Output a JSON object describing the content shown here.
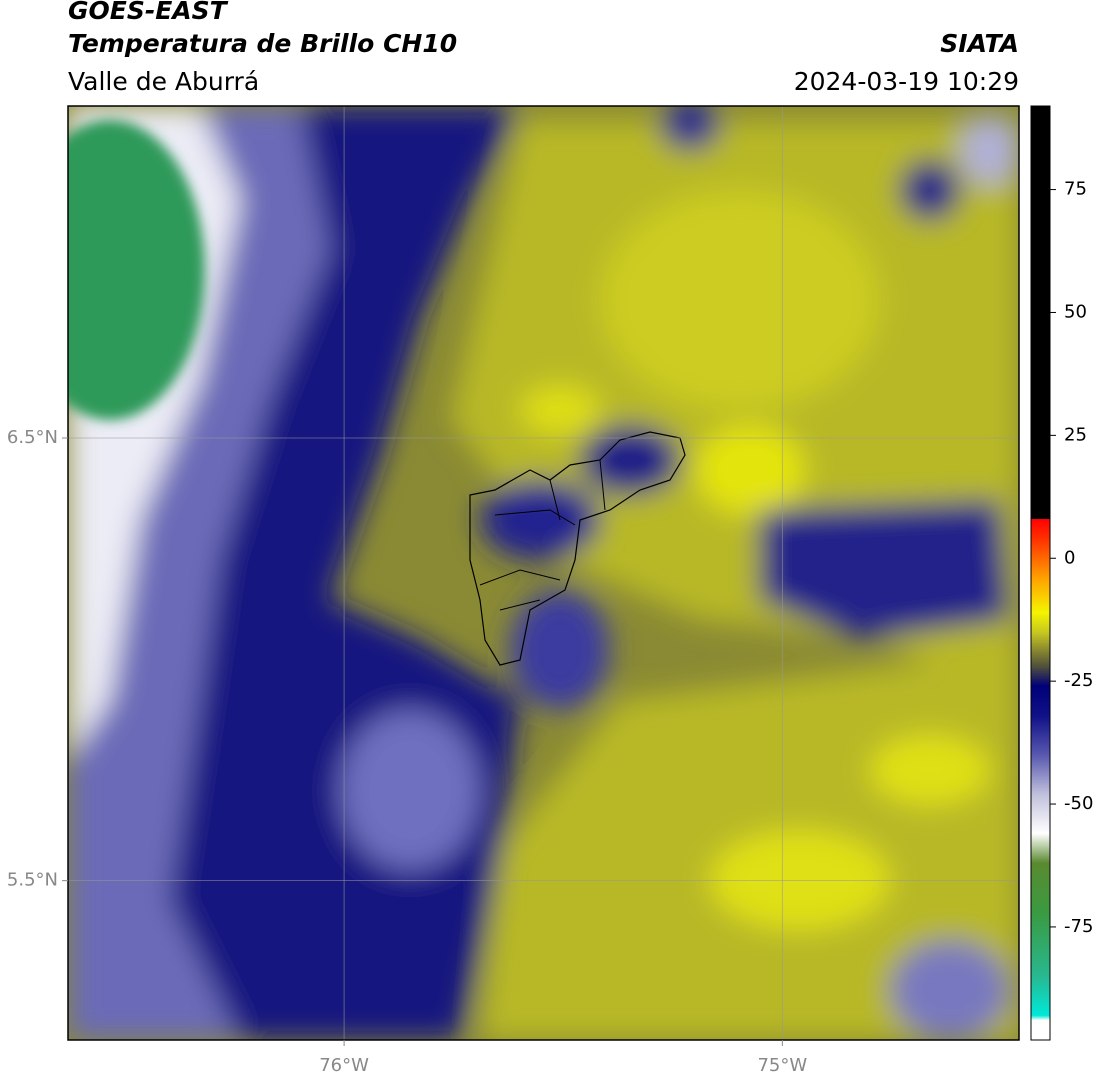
{
  "header": {
    "title": "GOES-EAST",
    "subtitle": "Temperatura de Brillo CH10",
    "region": "Valle de Aburrá",
    "source": "SIATA",
    "datetime": "2024-03-19 10:29"
  },
  "map": {
    "xlim": [
      -76.63,
      -74.46
    ],
    "ylim": [
      5.14,
      7.25
    ],
    "xticks": [
      {
        "value": -76,
        "label": "76°W"
      },
      {
        "value": -75,
        "label": "75°W"
      }
    ],
    "yticks": [
      {
        "value": 6.5,
        "label": "6.5°N"
      },
      {
        "value": 5.5,
        "label": "5.5°N"
      }
    ],
    "grid": true
  },
  "colorbar": {
    "lim": [
      -98,
      92
    ],
    "ticks": [
      75,
      50,
      25,
      0,
      -25,
      -50,
      -75
    ],
    "stops": [
      {
        "value": -98,
        "color": "#ffffff"
      },
      {
        "value": -94,
        "color": "#ffffff"
      },
      {
        "value": -93,
        "color": "#00e8d8"
      },
      {
        "value": -85,
        "color": "#28b890"
      },
      {
        "value": -72,
        "color": "#3a9a40"
      },
      {
        "value": -62,
        "color": "#5a8a30"
      },
      {
        "value": -56,
        "color": "#ffffff"
      },
      {
        "value": -48,
        "color": "#c0c0dc"
      },
      {
        "value": -40,
        "color": "#5858b0"
      },
      {
        "value": -32,
        "color": "#101088"
      },
      {
        "value": -26,
        "color": "#000078"
      },
      {
        "value": -22,
        "color": "#50503c"
      },
      {
        "value": -15,
        "color": "#c8c820"
      },
      {
        "value": -11,
        "color": "#f4f400"
      },
      {
        "value": -4,
        "color": "#ffa000"
      },
      {
        "value": 4,
        "color": "#ff3000"
      },
      {
        "value": 8,
        "color": "#ff0000"
      },
      {
        "value": 8.01,
        "color": "#000000"
      },
      {
        "value": 92,
        "color": "#000000"
      }
    ]
  }
}
